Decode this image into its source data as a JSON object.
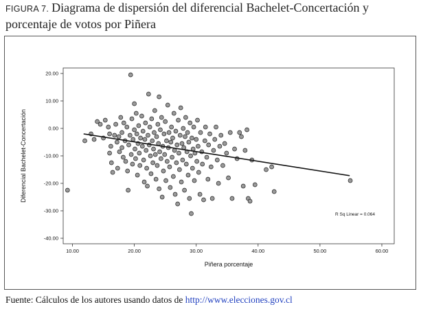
{
  "figure": {
    "label": "FIGURA 7.",
    "title": "Diagrama de dispersión del diferencial Bachelet-Concertación y porcentaje de votos por Piñera"
  },
  "source": {
    "prefix": "Fuente: Cálculos de los autores usando datos de ",
    "link_text": "http://www.elecciones.gov.cl"
  },
  "chart_data": {
    "type": "scatter",
    "xlabel": "Piñera porcentaje",
    "ylabel": "Diferencial Bachelet-Concertación",
    "xlim": [
      8.5,
      62
    ],
    "ylim": [
      -42,
      22
    ],
    "xticks": [
      10,
      20,
      30,
      40,
      50,
      60
    ],
    "xtick_labels": [
      "10.00",
      "20.00",
      "30.00",
      "40.00",
      "50.00",
      "60.00"
    ],
    "yticks": [
      20,
      10,
      0,
      -10,
      -20,
      -30,
      -40
    ],
    "ytick_labels": [
      "20.00",
      "10.00",
      "0.00",
      "-10.00",
      "-20.00",
      "-30.00",
      "-40.00"
    ],
    "annotation": "R Sq Linear = 0.064",
    "fit_line": {
      "x": [
        11.8,
        54.8
      ],
      "y": [
        -2.0,
        -17.2
      ]
    },
    "point_color": "#9a9a9a",
    "points": [
      [
        9.2,
        -22.5
      ],
      [
        12.0,
        -4.5
      ],
      [
        13.0,
        -2.0
      ],
      [
        13.5,
        -4.0
      ],
      [
        14.0,
        2.5
      ],
      [
        14.5,
        1.5
      ],
      [
        15.0,
        -3.5
      ],
      [
        15.3,
        3.0
      ],
      [
        15.8,
        0.5
      ],
      [
        16.0,
        -2.0
      ],
      [
        16.2,
        -6.5
      ],
      [
        16.0,
        -9.0
      ],
      [
        16.3,
        -12.5
      ],
      [
        16.5,
        -16.0
      ],
      [
        16.8,
        -2.5
      ],
      [
        17.0,
        1.5
      ],
      [
        17.2,
        -5.0
      ],
      [
        17.3,
        -14.5
      ],
      [
        17.5,
        -3.0
      ],
      [
        17.6,
        -8.5
      ],
      [
        17.8,
        4.0
      ],
      [
        18.0,
        -1.5
      ],
      [
        18.0,
        -7.0
      ],
      [
        18.2,
        -10.5
      ],
      [
        18.3,
        2.0
      ],
      [
        18.5,
        -4.5
      ],
      [
        18.6,
        -12.0
      ],
      [
        18.8,
        0.5
      ],
      [
        18.9,
        -15.5
      ],
      [
        19.0,
        -22.5
      ],
      [
        19.1,
        -6.0
      ],
      [
        19.3,
        -2.5
      ],
      [
        19.4,
        19.5
      ],
      [
        19.5,
        -9.5
      ],
      [
        19.6,
        3.5
      ],
      [
        19.7,
        -13.0
      ],
      [
        19.8,
        -4.0
      ],
      [
        20.0,
        9.0
      ],
      [
        20.0,
        -0.5
      ],
      [
        20.1,
        -7.5
      ],
      [
        20.2,
        -11.0
      ],
      [
        20.3,
        5.5
      ],
      [
        20.4,
        -2.0
      ],
      [
        20.5,
        -17.0
      ],
      [
        20.6,
        -5.5
      ],
      [
        20.7,
        1.0
      ],
      [
        20.8,
        -9.0
      ],
      [
        20.9,
        -13.5
      ],
      [
        21.0,
        -3.5
      ],
      [
        21.2,
        4.5
      ],
      [
        21.3,
        -6.5
      ],
      [
        21.4,
        -1.0
      ],
      [
        21.5,
        -11.5
      ],
      [
        21.6,
        -19.5
      ],
      [
        21.7,
        -4.0
      ],
      [
        21.8,
        2.0
      ],
      [
        21.9,
        -8.0
      ],
      [
        22.0,
        -14.5
      ],
      [
        22.1,
        -21.0
      ],
      [
        22.2,
        -2.5
      ],
      [
        22.3,
        12.5
      ],
      [
        22.4,
        -6.0
      ],
      [
        22.5,
        0.5
      ],
      [
        22.6,
        -10.0
      ],
      [
        22.7,
        -16.5
      ],
      [
        22.8,
        3.5
      ],
      [
        22.9,
        -4.5
      ],
      [
        23.0,
        -12.5
      ],
      [
        23.1,
        -7.5
      ],
      [
        23.2,
        -1.5
      ],
      [
        23.3,
        6.5
      ],
      [
        23.4,
        -9.5
      ],
      [
        23.5,
        -18.5
      ],
      [
        23.6,
        -3.0
      ],
      [
        23.7,
        -13.5
      ],
      [
        23.8,
        1.5
      ],
      [
        23.9,
        -5.5
      ],
      [
        24.0,
        11.5
      ],
      [
        24.0,
        -22.0
      ],
      [
        24.1,
        -8.5
      ],
      [
        24.2,
        -0.5
      ],
      [
        24.3,
        -11.0
      ],
      [
        24.4,
        4.0
      ],
      [
        24.5,
        -25.0
      ],
      [
        24.6,
        -6.5
      ],
      [
        24.7,
        -15.5
      ],
      [
        24.8,
        -2.0
      ],
      [
        24.9,
        -9.5
      ],
      [
        25.0,
        2.5
      ],
      [
        25.1,
        -19.0
      ],
      [
        25.2,
        -4.5
      ],
      [
        25.3,
        -12.0
      ],
      [
        25.4,
        8.5
      ],
      [
        25.5,
        -7.0
      ],
      [
        25.6,
        -1.5
      ],
      [
        25.7,
        -14.0
      ],
      [
        25.8,
        -21.5
      ],
      [
        25.9,
        -5.0
      ],
      [
        26.0,
        0.5
      ],
      [
        26.1,
        -10.5
      ],
      [
        26.2,
        -3.5
      ],
      [
        26.3,
        -17.5
      ],
      [
        26.4,
        5.5
      ],
      [
        26.5,
        -8.0
      ],
      [
        26.6,
        -24.0
      ],
      [
        26.7,
        -1.0
      ],
      [
        26.8,
        -12.5
      ],
      [
        26.9,
        -6.0
      ],
      [
        27.0,
        -27.5
      ],
      [
        27.1,
        3.0
      ],
      [
        27.2,
        -9.0
      ],
      [
        27.3,
        -15.0
      ],
      [
        27.4,
        -2.5
      ],
      [
        27.5,
        7.5
      ],
      [
        27.6,
        -19.5
      ],
      [
        27.7,
        -5.5
      ],
      [
        27.8,
        -11.5
      ],
      [
        27.9,
        0.0
      ],
      [
        28.0,
        -7.0
      ],
      [
        28.1,
        -22.5
      ],
      [
        28.2,
        -3.0
      ],
      [
        28.3,
        4.0
      ],
      [
        28.4,
        -13.0
      ],
      [
        28.5,
        -8.5
      ],
      [
        28.6,
        -1.5
      ],
      [
        28.7,
        -17.0
      ],
      [
        28.8,
        -5.0
      ],
      [
        28.9,
        -25.5
      ],
      [
        29.0,
        2.0
      ],
      [
        29.1,
        -10.0
      ],
      [
        29.2,
        -31.0
      ],
      [
        29.3,
        -3.5
      ],
      [
        29.4,
        -14.5
      ],
      [
        29.5,
        -7.5
      ],
      [
        29.6,
        0.5
      ],
      [
        29.7,
        -19.0
      ],
      [
        29.8,
        -9.0
      ],
      [
        30.0,
        -4.0
      ],
      [
        30.1,
        -12.0
      ],
      [
        30.2,
        3.0
      ],
      [
        30.3,
        -6.5
      ],
      [
        30.4,
        -16.0
      ],
      [
        30.6,
        -24.0
      ],
      [
        30.7,
        -1.5
      ],
      [
        30.9,
        -8.5
      ],
      [
        31.0,
        -13.0
      ],
      [
        31.2,
        -26.0
      ],
      [
        31.4,
        -4.5
      ],
      [
        31.5,
        0.5
      ],
      [
        31.7,
        -10.5
      ],
      [
        31.9,
        -18.5
      ],
      [
        32.0,
        -6.0
      ],
      [
        32.2,
        -2.0
      ],
      [
        32.4,
        -14.0
      ],
      [
        32.6,
        -25.5
      ],
      [
        32.8,
        -8.0
      ],
      [
        33.0,
        -4.0
      ],
      [
        33.2,
        0.5
      ],
      [
        33.4,
        -11.5
      ],
      [
        33.6,
        -20.0
      ],
      [
        33.8,
        -6.5
      ],
      [
        34.0,
        -2.5
      ],
      [
        34.3,
        -13.5
      ],
      [
        34.6,
        -5.5
      ],
      [
        34.9,
        -9.0
      ],
      [
        35.2,
        -18.0
      ],
      [
        35.5,
        -1.5
      ],
      [
        35.8,
        -25.5
      ],
      [
        36.2,
        -7.5
      ],
      [
        36.6,
        -11.0
      ],
      [
        37.0,
        -1.5
      ],
      [
        37.3,
        -3.0
      ],
      [
        37.6,
        -21.0
      ],
      [
        37.9,
        -8.0
      ],
      [
        38.2,
        -0.5
      ],
      [
        38.4,
        -25.5
      ],
      [
        38.7,
        -26.5
      ],
      [
        39.0,
        -11.5
      ],
      [
        39.5,
        -20.5
      ],
      [
        41.3,
        -15.0
      ],
      [
        42.2,
        -14.0
      ],
      [
        42.6,
        -23.0
      ],
      [
        54.9,
        -19.0
      ]
    ]
  }
}
